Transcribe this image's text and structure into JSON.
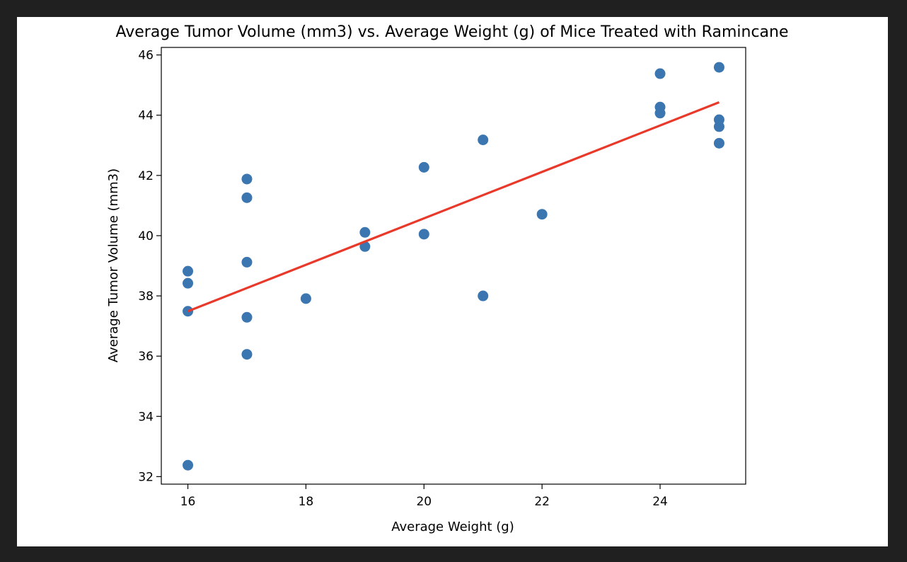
{
  "chart_data": {
    "type": "scatter",
    "title": "Average Tumor Volume (mm3) vs. Average Weight (g) of Mice Treated with Ramincane",
    "xlabel": "Average Weight (g)",
    "ylabel": "Average Tumor Volume (mm3)",
    "xlim": [
      15.55,
      25.45
    ],
    "ylim": [
      31.75,
      46.25
    ],
    "xticks": [
      16,
      18,
      20,
      22,
      24
    ],
    "yticks": [
      32,
      34,
      36,
      38,
      40,
      42,
      44,
      46
    ],
    "grid": false,
    "colors": {
      "points": "#3b76b0",
      "regression": "#e8392a"
    },
    "x": [
      16,
      16,
      16,
      16,
      17,
      17,
      17,
      17,
      17,
      18,
      19,
      19,
      20,
      20,
      21,
      21,
      22,
      24,
      24,
      24,
      25,
      25,
      25,
      25
    ],
    "y": [
      38.82,
      38.42,
      37.49,
      32.38,
      41.88,
      41.26,
      39.12,
      37.29,
      36.06,
      37.91,
      40.11,
      39.64,
      42.27,
      40.05,
      43.18,
      38.0,
      40.71,
      45.38,
      44.27,
      44.07,
      45.59,
      43.85,
      43.62,
      43.07
    ],
    "regression": {
      "x": [
        16,
        25
      ],
      "y": [
        37.49,
        44.43
      ]
    }
  }
}
